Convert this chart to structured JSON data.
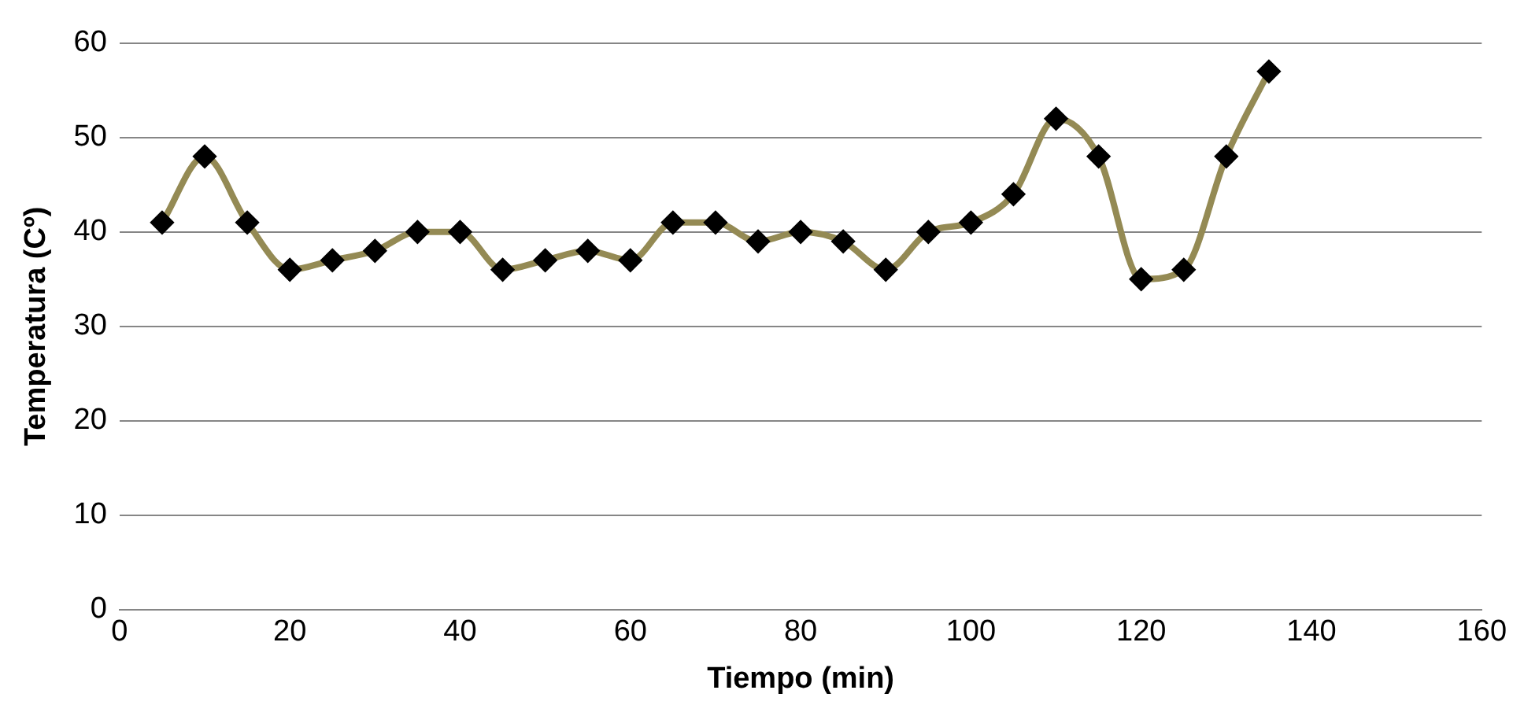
{
  "chart_data": {
    "type": "line",
    "xlabel": "Tiempo (min)",
    "ylabel": "Temperatura (Cº)",
    "x": [
      5,
      10,
      15,
      20,
      25,
      30,
      35,
      40,
      45,
      50,
      55,
      60,
      65,
      70,
      75,
      80,
      85,
      90,
      95,
      100,
      105,
      110,
      115,
      120,
      125,
      130,
      135
    ],
    "series": [
      {
        "color": "#948a54",
        "values": [
          41,
          48,
          41,
          36,
          37,
          38,
          40,
          40,
          36,
          37,
          38,
          37,
          41,
          41,
          39,
          40,
          39,
          36,
          40,
          41,
          44,
          52,
          48,
          35,
          36,
          48,
          57
        ]
      }
    ],
    "xlim": [
      0,
      160
    ],
    "xticks": [
      0,
      20,
      40,
      60,
      80,
      100,
      120,
      140,
      160
    ],
    "ylim": [
      0,
      60
    ],
    "yticks": [
      0,
      10,
      20,
      30,
      40,
      50,
      60
    ],
    "grid": "y",
    "legend": false,
    "marker": "diamond",
    "line_style": "solid"
  }
}
